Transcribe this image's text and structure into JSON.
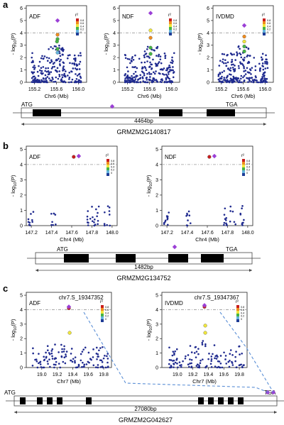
{
  "panel_labels": [
    "a",
    "b",
    "c"
  ],
  "legend": {
    "title": "r²",
    "ticks": [
      "0.8",
      "0.6",
      "0.4",
      "0.2",
      "0"
    ],
    "colors": [
      "#c81e1e",
      "#f08c1e",
      "#f0e63c",
      "#46b446",
      "#64b4dc",
      "#1e3c96"
    ]
  },
  "colors": {
    "point": "#1f2a8f",
    "lead": "#9b3fd6",
    "threshold": "#9a9a9a",
    "connector": "#5b8fd6"
  },
  "y_axis_label": "-log10(P)",
  "chart_data": [
    {
      "type": "scatter",
      "panel": "a",
      "title": "ADF",
      "xlabel": "Chr6 (Mb)",
      "xticks": [
        155.2,
        155.6,
        156.0
      ],
      "xlim": [
        155.05,
        156.15
      ],
      "yticks": [
        0,
        1,
        2,
        3,
        4,
        5,
        6
      ],
      "ylim": [
        0,
        6.2
      ],
      "threshold": 4,
      "lead": {
        "x": 155.62,
        "y": 5.0
      },
      "highlight_points": [
        {
          "x": 155.62,
          "y": 3.85,
          "r2": 0.6
        },
        {
          "x": 155.62,
          "y": 3.5,
          "r2": 0.2
        },
        {
          "x": 155.61,
          "y": 3.3,
          "r2": 0.2
        },
        {
          "x": 155.62,
          "y": 2.7,
          "r2": 0.2
        },
        {
          "x": 155.62,
          "y": 2.4,
          "r2": 0.0
        }
      ]
    },
    {
      "type": "scatter",
      "panel": "a",
      "title": "NDF",
      "xlabel": "Chr6 (Mb)",
      "xticks": [
        155.2,
        155.6,
        156.0
      ],
      "xlim": [
        155.05,
        156.15
      ],
      "yticks": [
        0,
        1,
        2,
        3,
        4,
        5,
        6
      ],
      "ylim": [
        0,
        6.2
      ],
      "threshold": 4,
      "lead": {
        "x": 155.62,
        "y": 5.6
      },
      "highlight_points": [
        {
          "x": 155.62,
          "y": 4.2,
          "r2": 0.4
        },
        {
          "x": 155.62,
          "y": 3.6,
          "r2": 0.6
        },
        {
          "x": 155.62,
          "y": 2.8,
          "r2": 0.2
        },
        {
          "x": 155.62,
          "y": 2.3,
          "r2": 0.2
        }
      ]
    },
    {
      "type": "scatter",
      "panel": "a",
      "title": "IVDMD",
      "xlabel": "Chr6 (Mb)",
      "xticks": [
        155.2,
        155.6,
        156.0
      ],
      "xlim": [
        155.05,
        156.15
      ],
      "yticks": [
        0,
        1,
        2,
        3,
        4,
        5,
        6
      ],
      "ylim": [
        0,
        6.2
      ],
      "threshold": 4,
      "lead": {
        "x": 155.62,
        "y": 4.6
      },
      "highlight_points": [
        {
          "x": 155.62,
          "y": 3.7,
          "r2": 0.6
        },
        {
          "x": 155.62,
          "y": 3.3,
          "r2": 0.4
        },
        {
          "x": 155.62,
          "y": 2.9,
          "r2": 0.2
        },
        {
          "x": 155.62,
          "y": 2.5,
          "r2": 0.2
        }
      ]
    },
    {
      "type": "scatter",
      "panel": "b",
      "title": "ADF",
      "xlabel": "Chr4 (Mb)",
      "xticks": [
        147.2,
        147.4,
        147.6,
        147.8,
        148.0
      ],
      "xlim": [
        147.15,
        148.05
      ],
      "yticks": [
        0,
        1,
        2,
        3,
        4,
        5
      ],
      "ylim": [
        0,
        5.2
      ],
      "threshold": 4,
      "lead": {
        "x": 147.67,
        "y": 4.55
      },
      "highlight_points": [
        {
          "x": 147.62,
          "y": 4.5,
          "r2": 0.8
        }
      ]
    },
    {
      "type": "scatter",
      "panel": "b",
      "title": "NDF",
      "xlabel": "Chr4 (Mb)",
      "xticks": [
        147.2,
        147.4,
        147.6,
        147.8,
        148.0
      ],
      "xlim": [
        147.15,
        148.05
      ],
      "yticks": [
        0,
        1,
        2,
        3,
        4,
        5
      ],
      "ylim": [
        0,
        5.2
      ],
      "threshold": 4,
      "lead": {
        "x": 147.67,
        "y": 4.55
      },
      "highlight_points": [
        {
          "x": 147.62,
          "y": 4.5,
          "r2": 0.8
        }
      ]
    },
    {
      "type": "scatter",
      "panel": "c",
      "title": "ADF",
      "annotation": "chr7.S_19347352",
      "xlabel": "Chr7 (Mb)",
      "xticks": [
        19.0,
        19.2,
        19.4,
        19.6,
        19.8
      ],
      "xlim": [
        18.8,
        19.9
      ],
      "yticks": [
        0,
        1,
        2,
        3,
        4,
        5
      ],
      "ylim": [
        0,
        5.2
      ],
      "threshold": 4,
      "lead": {
        "x": 19.35,
        "y": 4.2
      },
      "highlight_points": [
        {
          "x": 19.35,
          "y": 4.1,
          "r2": 0.8
        },
        {
          "x": 19.36,
          "y": 2.4,
          "r2": 0.4
        }
      ]
    },
    {
      "type": "scatter",
      "panel": "c",
      "title": "IVDMD",
      "annotation": "chr7.S_19347367",
      "xlabel": "Chr7 (Mb)",
      "xticks": [
        19.0,
        19.2,
        19.4,
        19.6,
        19.8
      ],
      "xlim": [
        18.8,
        19.9
      ],
      "yticks": [
        0,
        1,
        2,
        3,
        4,
        5
      ],
      "ylim": [
        0,
        5.2
      ],
      "threshold": 4,
      "lead": {
        "x": 19.35,
        "y": 4.3
      },
      "highlight_points": [
        {
          "x": 19.35,
          "y": 4.2,
          "r2": 0.8
        },
        {
          "x": 19.36,
          "y": 2.9,
          "r2": 0.4
        },
        {
          "x": 19.36,
          "y": 2.4,
          "r2": 0.4
        }
      ]
    }
  ],
  "genes": [
    {
      "panel": "a",
      "start": "ATG",
      "end": "TGA",
      "length": "4464bp",
      "name": "GRMZM2G140817"
    },
    {
      "panel": "b",
      "start": "ATG",
      "end": "TGA",
      "length": "1482bp",
      "name": "GRMZM2G134752"
    },
    {
      "panel": "c",
      "start": "ATG",
      "end": "TGA",
      "length": "27080bp",
      "name": "GRMZM2G042627"
    }
  ]
}
